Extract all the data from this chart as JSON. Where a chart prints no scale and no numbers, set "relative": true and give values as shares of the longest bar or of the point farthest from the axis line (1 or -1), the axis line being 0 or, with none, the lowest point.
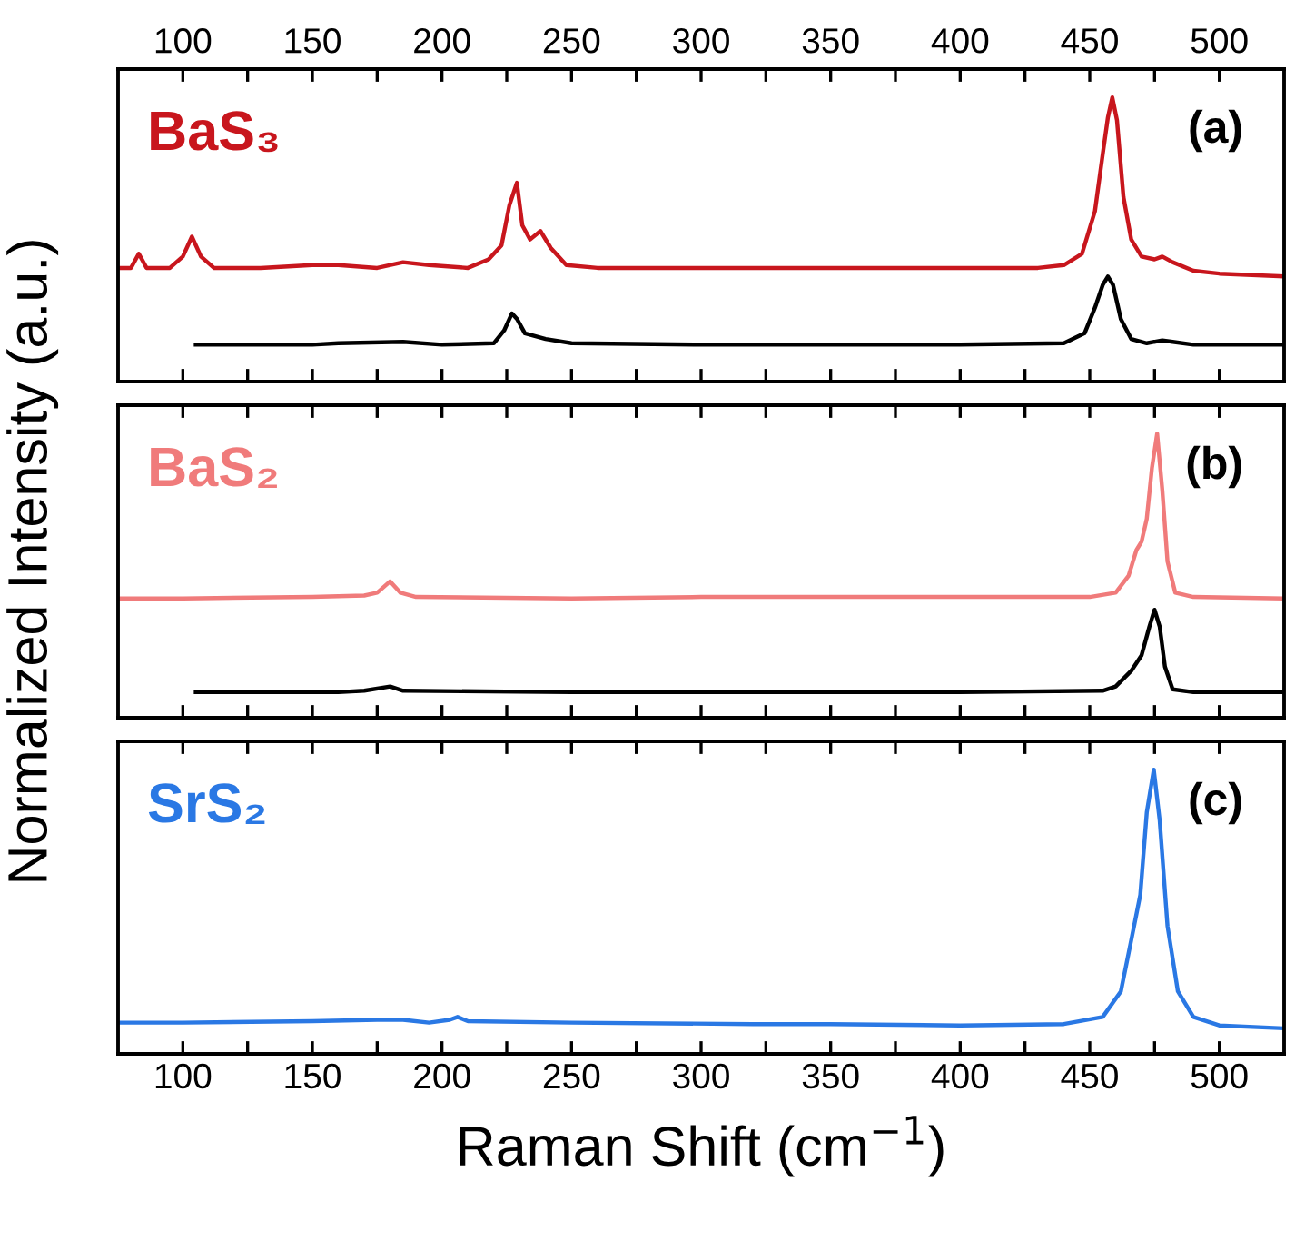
{
  "chart_data": [
    {
      "type": "line",
      "relative": true,
      "xlim": [
        75,
        525
      ],
      "xticks": [
        100,
        {
          "value": 125,
          "label": null
        },
        150,
        {
          "value": 175,
          "label": null
        },
        200,
        {
          "value": 225,
          "label": null
        },
        250,
        {
          "value": 275,
          "label": null
        },
        300,
        {
          "value": 325,
          "label": null
        },
        350,
        {
          "value": 375,
          "label": null
        },
        400,
        {
          "value": 425,
          "label": null
        },
        450,
        {
          "value": 475,
          "label": null
        },
        500
      ],
      "tick_labels": "x",
      "grid": false,
      "legend": "top left",
      "annotations": [
        "(a)"
      ],
      "series": [
        {
          "name": "BaS₃",
          "color": "#c8161d",
          "x": [
            75,
            80,
            83,
            86,
            95,
            100,
            103.5,
            107,
            112,
            130,
            150,
            160,
            175,
            185,
            195,
            210,
            218,
            223,
            226,
            228.9,
            231,
            234,
            238,
            242,
            248,
            260,
            300,
            350,
            400,
            430,
            440,
            447,
            452,
            455,
            457,
            458.7,
            460.5,
            463,
            466,
            470,
            475,
            478,
            482,
            490,
            500,
            525
          ],
          "values": [
            0.4,
            0.4,
            0.45,
            0.4,
            0.4,
            0.44,
            0.51,
            0.44,
            0.4,
            0.4,
            0.41,
            0.41,
            0.4,
            0.42,
            0.41,
            0.4,
            0.43,
            0.48,
            0.62,
            0.7,
            0.55,
            0.5,
            0.53,
            0.47,
            0.41,
            0.4,
            0.4,
            0.4,
            0.4,
            0.4,
            0.41,
            0.45,
            0.6,
            0.8,
            0.93,
            1.0,
            0.92,
            0.65,
            0.5,
            0.44,
            0.43,
            0.44,
            0.42,
            0.39,
            0.38,
            0.37
          ]
        },
        {
          "color": "#000000",
          "x": [
            105,
            150,
            160,
            185,
            200,
            220,
            224,
            227,
            229,
            232,
            240,
            250,
            300,
            400,
            440,
            448,
            452,
            455,
            457,
            459,
            462,
            466,
            472,
            478,
            482,
            490,
            525
          ],
          "values": [
            0.13,
            0.13,
            0.135,
            0.14,
            0.13,
            0.135,
            0.18,
            0.24,
            0.22,
            0.17,
            0.15,
            0.135,
            0.13,
            0.13,
            0.135,
            0.17,
            0.26,
            0.34,
            0.37,
            0.34,
            0.22,
            0.15,
            0.135,
            0.145,
            0.14,
            0.13,
            0.13
          ]
        }
      ]
    },
    {
      "type": "line",
      "relative": true,
      "xlim": [
        75,
        525
      ],
      "xticks": [
        {
          "value": 100,
          "label": null
        },
        {
          "value": 125,
          "label": null
        },
        {
          "value": 150,
          "label": null
        },
        {
          "value": 175,
          "label": null
        },
        {
          "value": 200,
          "label": null
        },
        {
          "value": 225,
          "label": null
        },
        {
          "value": 250,
          "label": null
        },
        {
          "value": 275,
          "label": null
        },
        {
          "value": 300,
          "label": null
        },
        {
          "value": 325,
          "label": null
        },
        {
          "value": 350,
          "label": null
        },
        {
          "value": 375,
          "label": null
        },
        {
          "value": 400,
          "label": null
        },
        {
          "value": 425,
          "label": null
        },
        {
          "value": 450,
          "label": null
        },
        {
          "value": 475,
          "label": null
        },
        {
          "value": 500,
          "label": null
        }
      ],
      "tick_labels": false,
      "grid": false,
      "legend": "top left",
      "annotations": [
        "(b)"
      ],
      "ylabel": "Normalized Intensity (a.u.)",
      "series": [
        {
          "name": "BaS₂",
          "color": "#f07b7b",
          "x": [
            75,
            100,
            150,
            170,
            175,
            180,
            184,
            190,
            250,
            300,
            400,
            450,
            460,
            465,
            468,
            470,
            472,
            474,
            476,
            478,
            480,
            483,
            490,
            525
          ],
          "values": [
            0.42,
            0.42,
            0.425,
            0.43,
            0.44,
            0.48,
            0.44,
            0.425,
            0.42,
            0.425,
            0.425,
            0.425,
            0.44,
            0.5,
            0.59,
            0.62,
            0.7,
            0.88,
            1.0,
            0.8,
            0.55,
            0.44,
            0.425,
            0.42
          ]
        },
        {
          "color": "#000000",
          "x": [
            105,
            160,
            170,
            180,
            185,
            250,
            400,
            455,
            460,
            466,
            470,
            473,
            475,
            477,
            479,
            482,
            490,
            525
          ],
          "values": [
            0.09,
            0.09,
            0.095,
            0.11,
            0.095,
            0.09,
            0.09,
            0.095,
            0.11,
            0.165,
            0.22,
            0.32,
            0.38,
            0.32,
            0.18,
            0.1,
            0.09,
            0.09
          ]
        }
      ]
    },
    {
      "type": "line",
      "relative": true,
      "xlim": [
        75,
        525
      ],
      "xticks": [
        100,
        {
          "value": 125,
          "label": null
        },
        150,
        {
          "value": 175,
          "label": null
        },
        200,
        {
          "value": 225,
          "label": null
        },
        250,
        {
          "value": 275,
          "label": null
        },
        300,
        {
          "value": 325,
          "label": null
        },
        350,
        {
          "value": 375,
          "label": null
        },
        400,
        {
          "value": 425,
          "label": null
        },
        450,
        {
          "value": 475,
          "label": null
        },
        500
      ],
      "tick_labels": "x",
      "grid": false,
      "legend": "top left",
      "annotations": [
        "(c)"
      ],
      "xlabel": "Raman Shift (cm$^{−1}$)",
      "series": [
        {
          "name": "SrS₂",
          "color": "#2a78e4",
          "x": [
            75,
            100,
            150,
            175,
            185,
            195,
            203,
            206,
            210,
            250,
            320,
            350,
            400,
            440,
            455,
            462,
            466,
            469.5,
            472,
            474.7,
            477,
            480,
            484,
            490,
            500,
            525
          ],
          "values": [
            0.11,
            0.11,
            0.115,
            0.12,
            0.12,
            0.11,
            0.12,
            0.13,
            0.115,
            0.11,
            0.105,
            0.105,
            0.1,
            0.105,
            0.13,
            0.22,
            0.4,
            0.56,
            0.85,
            1.0,
            0.82,
            0.45,
            0.22,
            0.13,
            0.1,
            0.09
          ]
        }
      ]
    }
  ]
}
